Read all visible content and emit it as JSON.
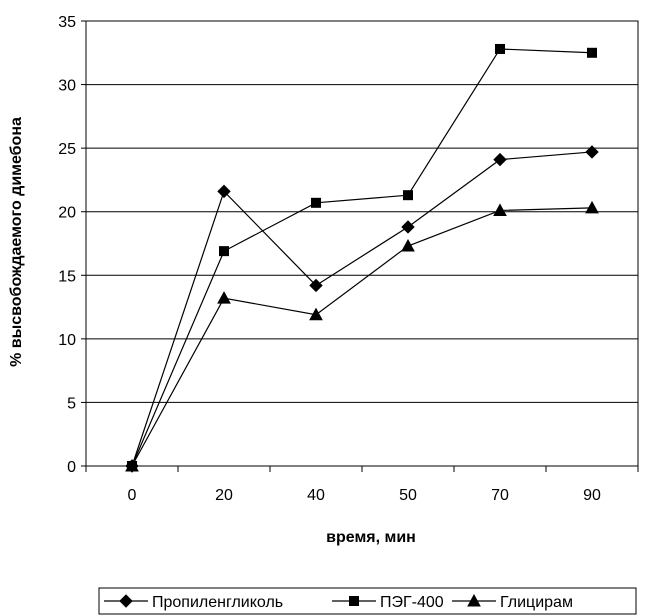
{
  "chart_data": {
    "type": "line",
    "categories": [
      "0",
      "20",
      "40",
      "50",
      "70",
      "90"
    ],
    "ylabel": "% высвобождаемого димебона",
    "xlabel": "время, мин",
    "ylim": [
      0,
      35
    ],
    "y_ticks": [
      0,
      5,
      10,
      15,
      20,
      25,
      30,
      35
    ],
    "grid": "horizontal",
    "legend_position": "bottom",
    "line_color": "#000000",
    "series": [
      {
        "name": "Пропиленгликоль",
        "marker": "diamond",
        "values": [
          0,
          21.6,
          14.2,
          18.8,
          24.1,
          24.7
        ]
      },
      {
        "name": "ПЭГ-400",
        "marker": "square",
        "values": [
          0,
          16.9,
          20.7,
          21.3,
          32.8,
          32.5
        ]
      },
      {
        "name": "Глицирам",
        "marker": "triangle",
        "values": [
          0,
          13.2,
          11.9,
          17.3,
          20.1,
          20.3
        ]
      }
    ]
  }
}
